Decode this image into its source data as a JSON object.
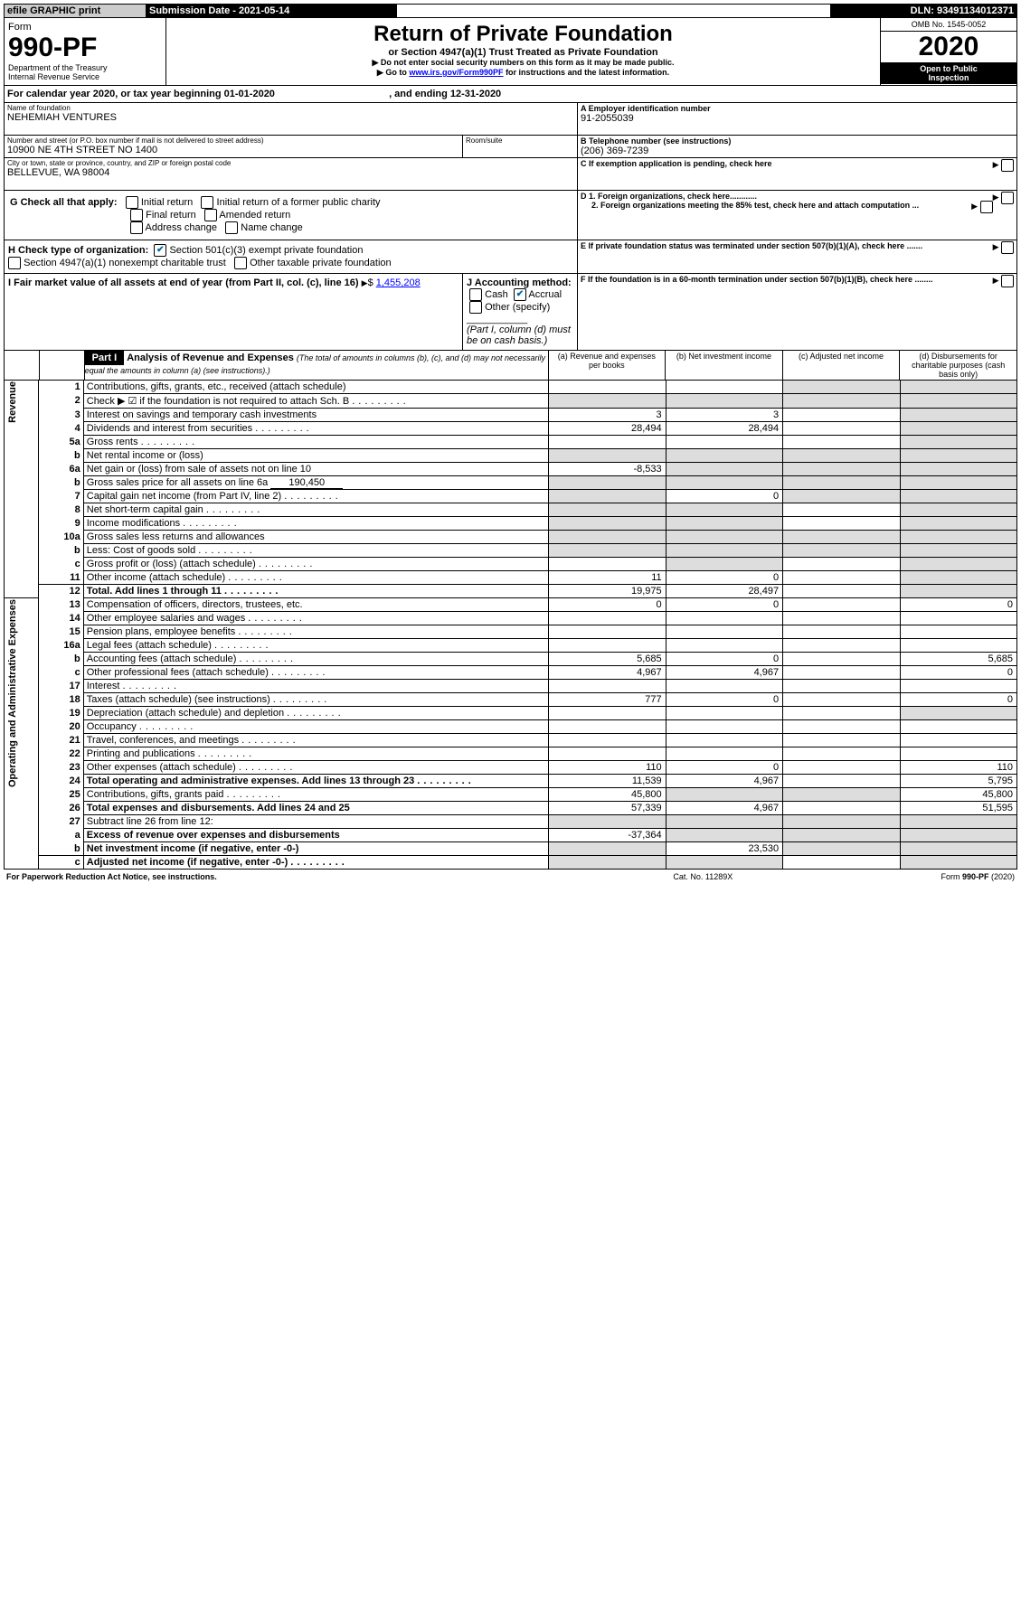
{
  "topbar": {
    "efile": "efile GRAPHIC print",
    "submission": "Submission Date - 2021-05-14",
    "dln": "DLN: 93491134012371"
  },
  "header": {
    "form": "Form",
    "form_no": "990-PF",
    "dept1": "Department of the Treasury",
    "dept2": "Internal Revenue Service",
    "title": "Return of Private Foundation",
    "subtitle": "or Section 4947(a)(1) Trust Treated as Private Foundation",
    "note1": "Do not enter social security numbers on this form as it may be made public.",
    "note2_pre": "Go to ",
    "note2_link": "www.irs.gov/Form990PF",
    "note2_post": " for instructions and the latest information.",
    "omb": "OMB No. 1545-0052",
    "year": "2020",
    "inspect1": "Open to Public",
    "inspect2": "Inspection"
  },
  "calendar": {
    "text_pre": "For calendar year 2020, or tax year beginning ",
    "begin": "01-01-2020",
    "text_mid": ", and ending ",
    "end": "12-31-2020"
  },
  "entity": {
    "name_label": "Name of foundation",
    "name": "NEHEMIAH VENTURES",
    "addr_label": "Number and street (or P.O. box number if mail is not delivered to street address)",
    "addr": "10900 NE 4TH STREET NO 1400",
    "room_label": "Room/suite",
    "city_label": "City or town, state or province, country, and ZIP or foreign postal code",
    "city": "BELLEVUE, WA  98004",
    "ein_label": "A Employer identification number",
    "ein": "91-2055039",
    "tel_label": "B Telephone number (see instructions)",
    "tel": "(206) 369-7239",
    "c_label": "C If exemption application is pending, check here",
    "d1": "D 1. Foreign organizations, check here............",
    "d2": "2. Foreign organizations meeting the 85% test, check here and attach computation ...",
    "e_label": "E If private foundation status was terminated under section 507(b)(1)(A), check here .......",
    "f_label": "F If the foundation is in a 60-month termination under section 507(b)(1)(B), check here ........"
  },
  "g": {
    "label": "G Check all that apply:",
    "r1": "Initial return",
    "r2": "Initial return of a former public charity",
    "r3": "Final return",
    "r4": "Amended return",
    "r5": "Address change",
    "r6": "Name change"
  },
  "h": {
    "label": "H Check type of organization:",
    "o1": "Section 501(c)(3) exempt private foundation",
    "o2": "Section 4947(a)(1) nonexempt charitable trust",
    "o3": "Other taxable private foundation"
  },
  "i": {
    "label": "I Fair market value of all assets at end of year (from Part II, col. (c), line 16)",
    "value": "1,455,208"
  },
  "j": {
    "label": "J Accounting method:",
    "cash": "Cash",
    "accrual": "Accrual",
    "other": "Other (specify)",
    "note": "(Part I, column (d) must be on cash basis.)"
  },
  "part1": {
    "label": "Part I",
    "title": "Analysis of Revenue and Expenses",
    "title_note": "(The total of amounts in columns (b), (c), and (d) may not necessarily equal the amounts in column (a) (see instructions).)",
    "col_a": "(a)   Revenue and expenses per books",
    "col_b": "(b)  Net investment income",
    "col_c": "(c)  Adjusted net income",
    "col_d": "(d)  Disbursements for charitable purposes (cash basis only)"
  },
  "sections": {
    "revenue": "Revenue",
    "expenses": "Operating and Administrative Expenses"
  },
  "rows": [
    {
      "n": "1",
      "t": "Contributions, gifts, grants, etc., received (attach schedule)",
      "a": "",
      "b": "",
      "c": "",
      "d": "",
      "shade": [
        "c",
        "d"
      ]
    },
    {
      "n": "2",
      "t": "Check ▶ ☑ if the foundation is not required to attach Sch. B",
      "a": "",
      "b": "",
      "c": "",
      "d": "",
      "dots": true,
      "shade": [
        "a",
        "b",
        "c",
        "d"
      ]
    },
    {
      "n": "3",
      "t": "Interest on savings and temporary cash investments",
      "a": "3",
      "b": "3",
      "c": "",
      "d": "",
      "shade": [
        "d"
      ]
    },
    {
      "n": "4",
      "t": "Dividends and interest from securities",
      "a": "28,494",
      "b": "28,494",
      "c": "",
      "d": "",
      "dots": true,
      "shade": [
        "d"
      ]
    },
    {
      "n": "5a",
      "t": "Gross rents",
      "a": "",
      "b": "",
      "c": "",
      "d": "",
      "dots": true,
      "shade": [
        "d"
      ]
    },
    {
      "n": "b",
      "t": "Net rental income or (loss)",
      "a": "",
      "b": "",
      "c": "",
      "d": "",
      "shade": [
        "a",
        "b",
        "c",
        "d"
      ],
      "blank": true
    },
    {
      "n": "6a",
      "t": "Net gain or (loss) from sale of assets not on line 10",
      "a": "-8,533",
      "b": "",
      "c": "",
      "d": "",
      "shade": [
        "b",
        "c",
        "d"
      ]
    },
    {
      "n": "b",
      "t": "Gross sales price for all assets on line 6a",
      "a": "",
      "b": "",
      "c": "",
      "d": "",
      "inline": "190,450",
      "shade": [
        "a",
        "b",
        "c",
        "d"
      ]
    },
    {
      "n": "7",
      "t": "Capital gain net income (from Part IV, line 2)",
      "a": "",
      "b": "0",
      "c": "",
      "d": "",
      "dots": true,
      "shade": [
        "a",
        "c",
        "d"
      ]
    },
    {
      "n": "8",
      "t": "Net short-term capital gain",
      "a": "",
      "b": "",
      "c": "",
      "d": "",
      "dots": true,
      "shade": [
        "a",
        "b",
        "d"
      ]
    },
    {
      "n": "9",
      "t": "Income modifications",
      "a": "",
      "b": "",
      "c": "",
      "d": "",
      "dots": true,
      "shade": [
        "a",
        "b",
        "d"
      ]
    },
    {
      "n": "10a",
      "t": "Gross sales less returns and allowances",
      "a": "",
      "b": "",
      "c": "",
      "d": "",
      "shade": [
        "a",
        "b",
        "c",
        "d"
      ],
      "blank": true
    },
    {
      "n": "b",
      "t": "Less: Cost of goods sold",
      "a": "",
      "b": "",
      "c": "",
      "d": "",
      "dots": true,
      "shade": [
        "a",
        "b",
        "c",
        "d"
      ],
      "blank": true
    },
    {
      "n": "c",
      "t": "Gross profit or (loss) (attach schedule)",
      "a": "",
      "b": "",
      "c": "",
      "d": "",
      "dots": true,
      "shade": [
        "b",
        "d"
      ]
    },
    {
      "n": "11",
      "t": "Other income (attach schedule)",
      "a": "11",
      "b": "0",
      "c": "",
      "d": "",
      "dots": true,
      "shade": [
        "d"
      ]
    },
    {
      "n": "12",
      "t": "Total. Add lines 1 through 11",
      "a": "19,975",
      "b": "28,497",
      "c": "",
      "d": "",
      "dots": true,
      "bold": true,
      "shade": [
        "d"
      ]
    },
    {
      "n": "13",
      "t": "Compensation of officers, directors, trustees, etc.",
      "a": "0",
      "b": "0",
      "c": "",
      "d": "0"
    },
    {
      "n": "14",
      "t": "Other employee salaries and wages",
      "a": "",
      "b": "",
      "c": "",
      "d": "",
      "dots": true
    },
    {
      "n": "15",
      "t": "Pension plans, employee benefits",
      "a": "",
      "b": "",
      "c": "",
      "d": "",
      "dots": true
    },
    {
      "n": "16a",
      "t": "Legal fees (attach schedule)",
      "a": "",
      "b": "",
      "c": "",
      "d": "",
      "dots": true
    },
    {
      "n": "b",
      "t": "Accounting fees (attach schedule)",
      "a": "5,685",
      "b": "0",
      "c": "",
      "d": "5,685",
      "dots": true
    },
    {
      "n": "c",
      "t": "Other professional fees (attach schedule)",
      "a": "4,967",
      "b": "4,967",
      "c": "",
      "d": "0",
      "dots": true
    },
    {
      "n": "17",
      "t": "Interest",
      "a": "",
      "b": "",
      "c": "",
      "d": "",
      "dots": true
    },
    {
      "n": "18",
      "t": "Taxes (attach schedule) (see instructions)",
      "a": "777",
      "b": "0",
      "c": "",
      "d": "0",
      "dots": true
    },
    {
      "n": "19",
      "t": "Depreciation (attach schedule) and depletion",
      "a": "",
      "b": "",
      "c": "",
      "d": "",
      "dots": true,
      "shade": [
        "d"
      ]
    },
    {
      "n": "20",
      "t": "Occupancy",
      "a": "",
      "b": "",
      "c": "",
      "d": "",
      "dots": true
    },
    {
      "n": "21",
      "t": "Travel, conferences, and meetings",
      "a": "",
      "b": "",
      "c": "",
      "d": "",
      "dots": true
    },
    {
      "n": "22",
      "t": "Printing and publications",
      "a": "",
      "b": "",
      "c": "",
      "d": "",
      "dots": true
    },
    {
      "n": "23",
      "t": "Other expenses (attach schedule)",
      "a": "110",
      "b": "0",
      "c": "",
      "d": "110",
      "dots": true
    },
    {
      "n": "24",
      "t": "Total operating and administrative expenses. Add lines 13 through 23",
      "a": "11,539",
      "b": "4,967",
      "c": "",
      "d": "5,795",
      "dots": true,
      "bold": true
    },
    {
      "n": "25",
      "t": "Contributions, gifts, grants paid",
      "a": "45,800",
      "b": "",
      "c": "",
      "d": "45,800",
      "dots": true,
      "shade": [
        "b",
        "c"
      ]
    },
    {
      "n": "26",
      "t": "Total expenses and disbursements. Add lines 24 and 25",
      "a": "57,339",
      "b": "4,967",
      "c": "",
      "d": "51,595",
      "bold": true
    },
    {
      "n": "27",
      "t": "Subtract line 26 from line 12:",
      "a": "",
      "b": "",
      "c": "",
      "d": "",
      "shade": [
        "a",
        "b",
        "c",
        "d"
      ]
    },
    {
      "n": "a",
      "t": "Excess of revenue over expenses and disbursements",
      "a": "-37,364",
      "b": "",
      "c": "",
      "d": "",
      "bold": true,
      "shade": [
        "b",
        "c",
        "d"
      ]
    },
    {
      "n": "b",
      "t": "Net investment income (if negative, enter -0-)",
      "a": "",
      "b": "23,530",
      "c": "",
      "d": "",
      "bold": true,
      "shade": [
        "a",
        "c",
        "d"
      ]
    },
    {
      "n": "c",
      "t": "Adjusted net income (if negative, enter -0-)",
      "a": "",
      "b": "",
      "c": "",
      "d": "",
      "bold": true,
      "dots": true,
      "shade": [
        "a",
        "b",
        "d"
      ]
    }
  ],
  "footer": {
    "left": "For Paperwork Reduction Act Notice, see instructions.",
    "mid": "Cat. No. 11289X",
    "right": "Form 990-PF (2020)"
  }
}
